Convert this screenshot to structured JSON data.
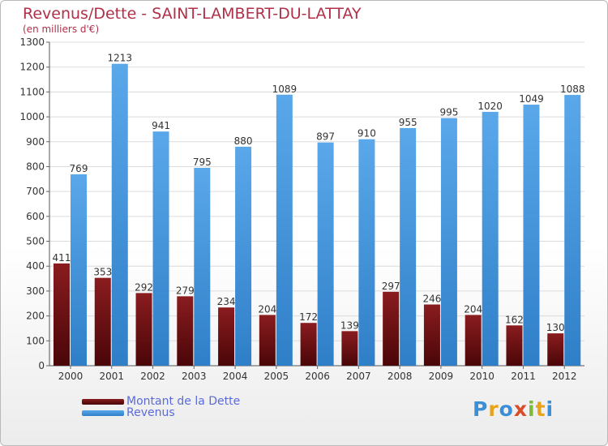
{
  "chart_data": {
    "type": "bar",
    "title": "Revenus/Dette - SAINT-LAMBERT-DU-LATTAY",
    "subtitle": "(en milliers d'€)",
    "categories": [
      "2000",
      "2001",
      "2002",
      "2003",
      "2004",
      "2005",
      "2006",
      "2007",
      "2008",
      "2009",
      "2010",
      "2011",
      "2012"
    ],
    "series": [
      {
        "name": "Montant de la Dette",
        "color": "#6e0e12",
        "values": [
          411,
          353,
          292,
          279,
          234,
          204,
          172,
          139,
          297,
          246,
          204,
          162,
          130
        ]
      },
      {
        "name": "Revenus",
        "color": "#3d8fd8",
        "values": [
          769,
          1213,
          941,
          795,
          880,
          1089,
          897,
          910,
          955,
          995,
          1020,
          1049,
          1088
        ]
      }
    ],
    "ylim": [
      0,
      1300
    ],
    "yticks": [
      0,
      100,
      200,
      300,
      400,
      500,
      600,
      700,
      800,
      900,
      1000,
      1100,
      1200,
      1300
    ],
    "grid": true,
    "legend_position": "bottom-left"
  },
  "logo": {
    "letters": [
      "P",
      "r",
      "o",
      "x",
      "i",
      "t",
      "i"
    ]
  }
}
